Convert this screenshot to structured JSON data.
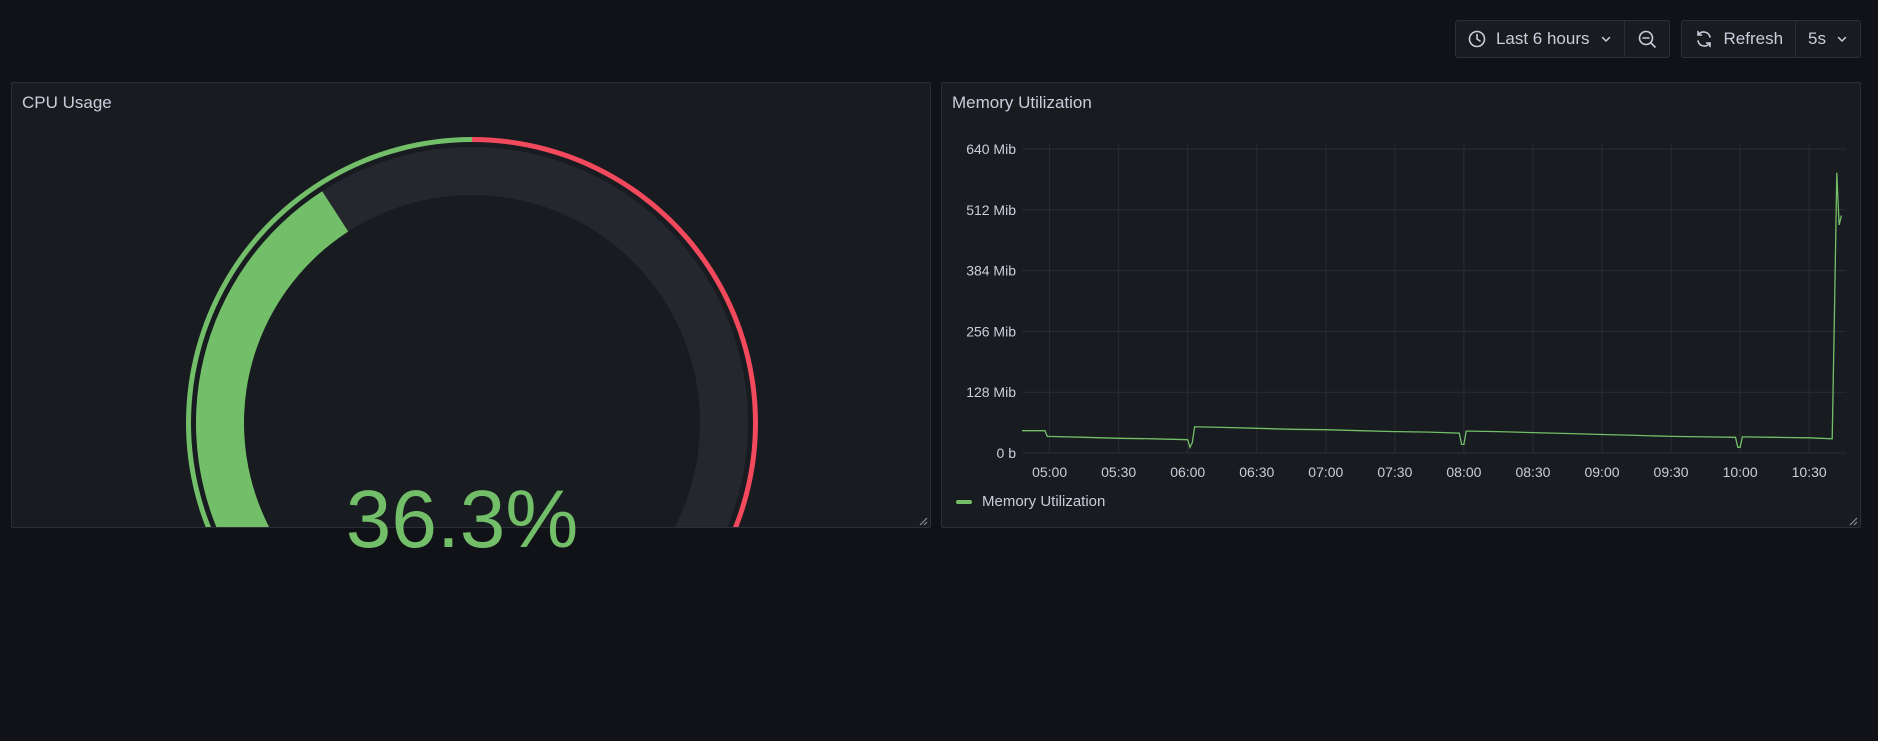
{
  "toolbar": {
    "time_range_label": "Last 6 hours",
    "refresh_label": "Refresh",
    "refresh_interval": "5s"
  },
  "cpu_panel": {
    "title": "CPU Usage",
    "value_text": "36.3%",
    "value": 36.3,
    "gauge_min": 0,
    "gauge_max": 100,
    "threshold_red_start": 50,
    "colors": {
      "ok": "#73bf69",
      "critical": "#f2495c",
      "track": "#25272e"
    }
  },
  "memory_panel": {
    "title": "Memory Utilization",
    "legend_label": "Memory Utilization",
    "series_color": "#73bf69"
  },
  "chart_data": {
    "type": "line",
    "title": "Memory Utilization",
    "xlabel": "",
    "ylabel": "",
    "y_unit": "Mib",
    "ylim": [
      0,
      640
    ],
    "y_ticks": [
      "0 b",
      "128 Mib",
      "256 Mib",
      "384 Mib",
      "512 Mib",
      "640 Mib"
    ],
    "x_ticks": [
      "05:00",
      "05:30",
      "06:00",
      "06:30",
      "07:00",
      "07:30",
      "08:00",
      "08:30",
      "09:00",
      "09:30",
      "10:00",
      "10:30"
    ],
    "grid": true,
    "legend": "bottom-left",
    "series": [
      {
        "name": "Memory Utilization",
        "x": [
          "04:48",
          "04:58",
          "04:59",
          "05:15",
          "05:30",
          "05:45",
          "06:00",
          "06:01",
          "06:02",
          "06:03",
          "06:05",
          "06:15",
          "06:30",
          "06:45",
          "07:00",
          "07:15",
          "07:30",
          "07:45",
          "07:58",
          "07:59",
          "08:00",
          "08:01",
          "08:02",
          "08:15",
          "08:30",
          "08:45",
          "09:00",
          "09:15",
          "09:30",
          "09:45",
          "09:58",
          "09:59",
          "10:00",
          "10:01",
          "10:02",
          "10:15",
          "10:30",
          "10:40",
          "10:41",
          "10:42",
          "10:43",
          "10:44"
        ],
        "values": [
          47,
          47,
          35,
          33,
          31,
          30,
          28,
          12,
          22,
          55,
          55,
          54,
          52,
          50,
          49,
          47,
          45,
          44,
          42,
          18,
          18,
          46,
          46,
          45,
          43,
          41,
          39,
          37,
          35,
          34,
          33,
          12,
          12,
          34,
          34,
          33,
          32,
          30,
          300,
          590,
          480,
          500
        ]
      }
    ]
  }
}
